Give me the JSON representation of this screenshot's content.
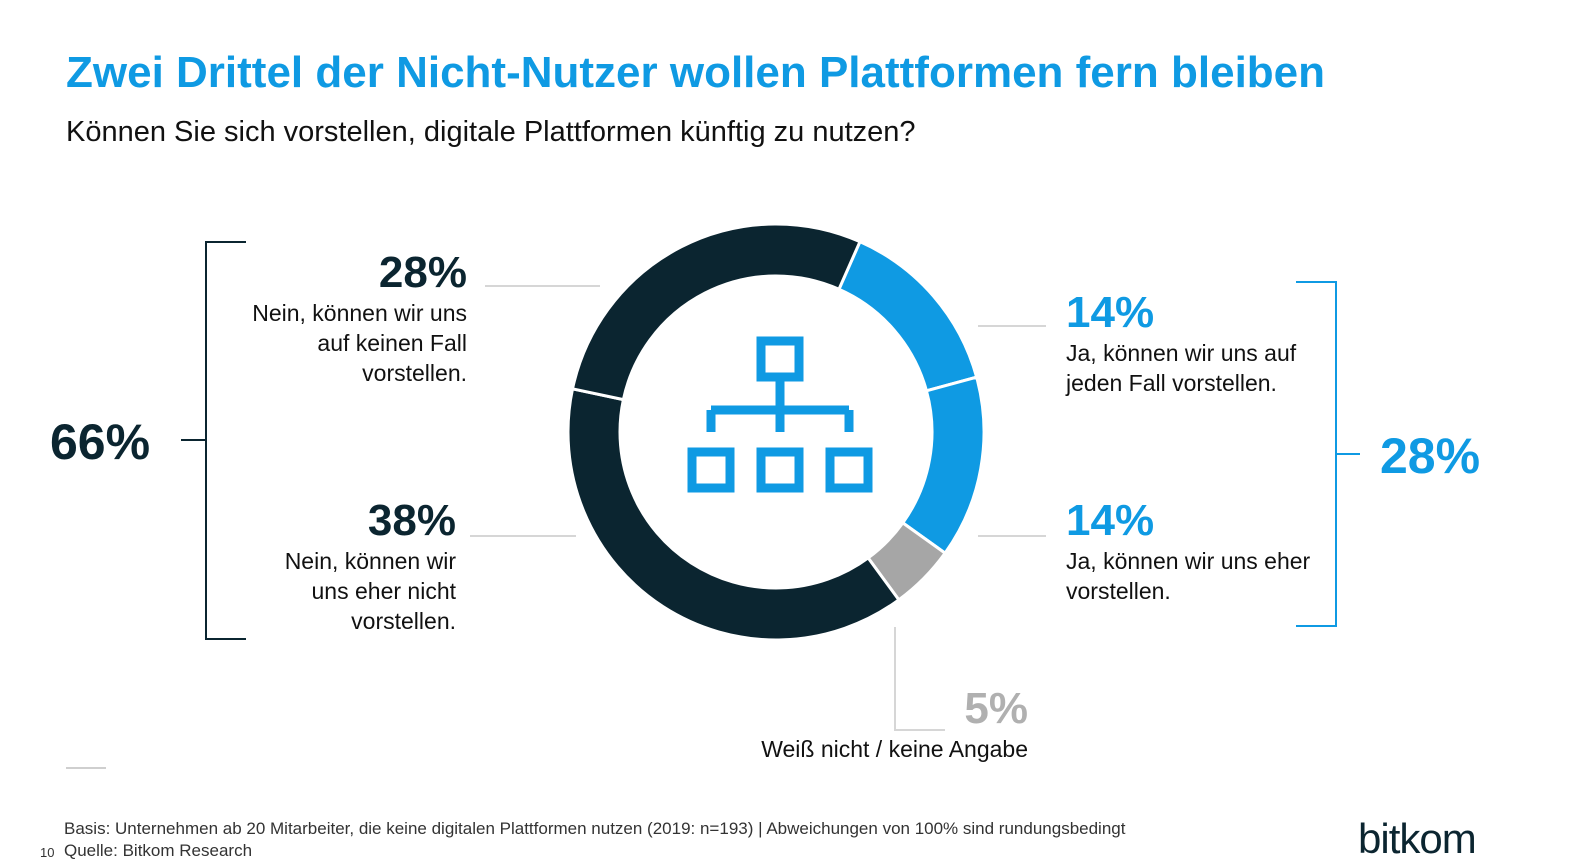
{
  "title": "Zwei Drittel der Nicht-Nutzer wollen Plattformen fern bleiben",
  "subtitle": "Können Sie sich vorstellen, digitale Plattformen künftig zu nutzen?",
  "chart_data": {
    "type": "pie",
    "title": "Zwei Drittel der Nicht-Nutzer wollen Plattformen fern bleiben",
    "subtitle": "Können Sie sich vorstellen, digitale Plattformen künftig zu nutzen?",
    "slices": [
      {
        "label": "Ja, können wir uns auf jeden Fall vorstellen.",
        "value": 14,
        "display": "14%",
        "color": "#0f9ae3"
      },
      {
        "label": "Ja, können wir uns eher vorstellen.",
        "value": 14,
        "display": "14%",
        "color": "#0f9ae3"
      },
      {
        "label": "Weiß nicht / keine Angabe",
        "value": 5,
        "display": "5%",
        "color": "#a6a6a6"
      },
      {
        "label": "Nein, können wir uns eher nicht vorstellen.",
        "value": 38,
        "display": "38%",
        "color": "#0b2530"
      },
      {
        "label": "Nein, können wir uns auf keinen Fall vorstellen.",
        "value": 28,
        "display": "28%",
        "color": "#0b2530"
      }
    ],
    "groups": [
      {
        "value": 66,
        "display": "66%",
        "color": "#0b2530"
      },
      {
        "value": 28,
        "display": "28%",
        "color": "#0f9ae3"
      }
    ],
    "center_icon": "network-hierarchy-icon"
  },
  "labels": {
    "no_never_pct": "28%",
    "no_never_lines": [
      "Nein, können wir uns",
      "auf keinen Fall",
      "vorstellen."
    ],
    "no_rather_pct": "38%",
    "no_rather_lines": [
      "Nein, können wir",
      "uns eher nicht",
      "vorstellen."
    ],
    "yes_sure_pct": "14%",
    "yes_sure_lines": [
      "Ja, können wir uns auf",
      "jeden Fall vorstellen."
    ],
    "yes_rather_pct": "14%",
    "yes_rather_lines": [
      "Ja, können wir uns eher",
      "vorstellen."
    ],
    "unknown_pct": "5%",
    "unknown_label": "Weiß nicht / keine Angabe",
    "group_no_pct": "66%",
    "group_yes_pct": "28%"
  },
  "footer": {
    "basis": "Basis: Unternehmen ab 20 Mitarbeiter, die keine digitalen Plattformen nutzen  (2019: n=193) | Abweichungen von 100% sind rundungsbedingt",
    "page_number": "10",
    "source": "Quelle: Bitkom Research",
    "logo": "bitkom"
  },
  "colors": {
    "accent_blue": "#0f9ae3",
    "dark_navy": "#0b2530",
    "gray": "#a6a6a6"
  }
}
